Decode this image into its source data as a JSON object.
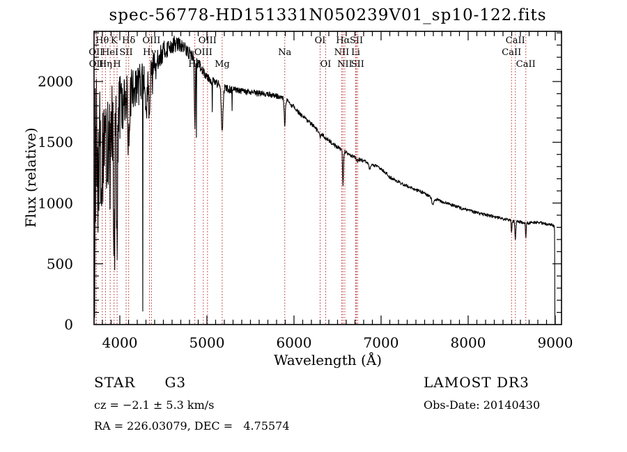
{
  "title": "spec-56778-HD151331N050239V01_sp10-122.fits",
  "footer": {
    "object_type": "STAR",
    "subclass": "G3",
    "survey": "LAMOST DR3",
    "cz_line": "cz = −2.1 ± 5.3 km/s",
    "obs_date_line": "Obs-Date: 20140430",
    "coords_line": "RA = 226.03079, DEC =   4.75574"
  },
  "chart_data": {
    "type": "line",
    "title": "spec-56778-HD151331N050239V01_sp10-122.fits",
    "xlabel": "Wavelength (Å)",
    "ylabel": "Flux (relative)",
    "xlim": [
      3704,
      9072
    ],
    "ylim": [
      0,
      2413
    ],
    "x_ticks": [
      4000,
      5000,
      6000,
      7000,
      8000,
      9000
    ],
    "y_ticks": [
      0,
      500,
      1000,
      1500,
      2000
    ],
    "x_minor_step": 100,
    "y_minor_step": 100,
    "grid": false,
    "trace_color": "#000000",
    "marker_color": "#b22222",
    "spectral_lines": [
      {
        "label": "OII",
        "wl": 3727.1,
        "row": 1
      },
      {
        "label": "OII",
        "wl": 3729.9,
        "row": 2
      },
      {
        "label": "Hθ",
        "wl": 3798.0,
        "row": 0
      },
      {
        "label": "Hη",
        "wl": 3835.4,
        "row": 2
      },
      {
        "label": "HeI",
        "wl": 3889.0,
        "row": 1
      },
      {
        "label": "K",
        "wl": 3933.7,
        "row": 0
      },
      {
        "label": "H",
        "wl": 3968.5,
        "row": 2
      },
      {
        "label": "SII",
        "wl": 4072.0,
        "row": 1
      },
      {
        "label": "Hδ",
        "wl": 4101.7,
        "row": 0
      },
      {
        "label": "Hγ",
        "wl": 4340.5,
        "row": 1
      },
      {
        "label": "OIII",
        "wl": 4363.2,
        "row": 0
      },
      {
        "label": "Hβ",
        "wl": 4861.3,
        "row": 2
      },
      {
        "label": "OIII",
        "wl": 4958.9,
        "row": 1
      },
      {
        "label": "OIII",
        "wl": 5006.8,
        "row": 0
      },
      {
        "label": "Mg",
        "wl": 5175.4,
        "row": 2
      },
      {
        "label": "Na",
        "wl": 5894.0,
        "row": 1
      },
      {
        "label": "OI",
        "wl": 6300.2,
        "row": 0
      },
      {
        "label": "OI",
        "wl": 6363.9,
        "row": 2
      },
      {
        "label": "NII",
        "wl": 6548.1,
        "row": 1
      },
      {
        "label": "Hα",
        "wl": 6562.8,
        "row": 0
      },
      {
        "label": "NII",
        "wl": 6583.5,
        "row": 2
      },
      {
        "label": "Li",
        "wl": 6708.0,
        "row": 1
      },
      {
        "label": "SII",
        "wl": 6716.4,
        "row": 0
      },
      {
        "label": "SII",
        "wl": 6730.8,
        "row": 2
      },
      {
        "label": "CaII",
        "wl": 8498.0,
        "row": 1
      },
      {
        "label": "CaII",
        "wl": 8542.1,
        "row": 0
      },
      {
        "label": "CaII",
        "wl": 8662.1,
        "row": 2
      }
    ],
    "continuum": [
      [
        3704,
        1250
      ],
      [
        3720,
        1350
      ],
      [
        3750,
        1480
      ],
      [
        3800,
        1530
      ],
      [
        3850,
        1560
      ],
      [
        3900,
        1620
      ],
      [
        3950,
        1660
      ],
      [
        4000,
        1770
      ],
      [
        4050,
        1820
      ],
      [
        4100,
        1860
      ],
      [
        4150,
        1960
      ],
      [
        4200,
        2000
      ],
      [
        4250,
        2010
      ],
      [
        4300,
        2000
      ],
      [
        4350,
        2050
      ],
      [
        4400,
        2140
      ],
      [
        4450,
        2200
      ],
      [
        4500,
        2240
      ],
      [
        4550,
        2280
      ],
      [
        4600,
        2300
      ],
      [
        4650,
        2310
      ],
      [
        4700,
        2295
      ],
      [
        4750,
        2265
      ],
      [
        4800,
        2235
      ],
      [
        4861,
        2190
      ],
      [
        4900,
        2145
      ],
      [
        4950,
        2095
      ],
      [
        5000,
        2050
      ],
      [
        5050,
        2010
      ],
      [
        5100,
        1990
      ],
      [
        5175,
        1955
      ],
      [
        5250,
        1935
      ],
      [
        5350,
        1925
      ],
      [
        5450,
        1915
      ],
      [
        5550,
        1905
      ],
      [
        5650,
        1900
      ],
      [
        5750,
        1890
      ],
      [
        5850,
        1870
      ],
      [
        5894,
        1855
      ],
      [
        5950,
        1820
      ],
      [
        6000,
        1790
      ],
      [
        6050,
        1750
      ],
      [
        6100,
        1710
      ],
      [
        6150,
        1680
      ],
      [
        6200,
        1650
      ],
      [
        6250,
        1610
      ],
      [
        6300,
        1575
      ],
      [
        6350,
        1545
      ],
      [
        6400,
        1515
      ],
      [
        6450,
        1485
      ],
      [
        6500,
        1460
      ],
      [
        6563,
        1430
      ],
      [
        6600,
        1415
      ],
      [
        6650,
        1395
      ],
      [
        6700,
        1375
      ],
      [
        6750,
        1360
      ],
      [
        6800,
        1345
      ],
      [
        6850,
        1330
      ],
      [
        6900,
        1315
      ],
      [
        6950,
        1300
      ],
      [
        7000,
        1285
      ],
      [
        7050,
        1250
      ],
      [
        7100,
        1215
      ],
      [
        7150,
        1195
      ],
      [
        7200,
        1175
      ],
      [
        7250,
        1155
      ],
      [
        7300,
        1140
      ],
      [
        7350,
        1125
      ],
      [
        7400,
        1110
      ],
      [
        7450,
        1095
      ],
      [
        7500,
        1080
      ],
      [
        7550,
        1060
      ],
      [
        7600,
        1042
      ],
      [
        7650,
        1025
      ],
      [
        7700,
        1012
      ],
      [
        7750,
        1000
      ],
      [
        7800,
        990
      ],
      [
        7850,
        975
      ],
      [
        7900,
        962
      ],
      [
        7950,
        950
      ],
      [
        8000,
        940
      ],
      [
        8050,
        930
      ],
      [
        8100,
        920
      ],
      [
        8150,
        910
      ],
      [
        8200,
        902
      ],
      [
        8250,
        895
      ],
      [
        8300,
        888
      ],
      [
        8350,
        880
      ],
      [
        8400,
        871
      ],
      [
        8450,
        862
      ],
      [
        8500,
        855
      ],
      [
        8550,
        848
      ],
      [
        8600,
        843
      ],
      [
        8650,
        839
      ],
      [
        8700,
        836
      ],
      [
        8750,
        839
      ],
      [
        8800,
        843
      ],
      [
        8850,
        836
      ],
      [
        8900,
        828
      ],
      [
        8950,
        820
      ],
      [
        8990,
        812
      ]
    ],
    "absorption": [
      {
        "wl": 3798,
        "d": 350,
        "s": 5
      },
      {
        "wl": 3835,
        "d": 400,
        "s": 5
      },
      {
        "wl": 3889,
        "d": 380,
        "s": 5
      },
      {
        "wl": 3934,
        "d": 1000,
        "s": 6
      },
      {
        "wl": 3968,
        "d": 900,
        "s": 6
      },
      {
        "wl": 4072,
        "d": 150,
        "s": 4
      },
      {
        "wl": 4102,
        "d": 430,
        "s": 6
      },
      {
        "wl": 4305,
        "d": 250,
        "s": 10
      },
      {
        "wl": 4340,
        "d": 430,
        "s": 6
      },
      {
        "wl": 4861,
        "d": 600,
        "s": 5
      },
      {
        "wl": 5175,
        "d": 360,
        "s": 9
      },
      {
        "wl": 5894,
        "d": 240,
        "s": 6
      },
      {
        "wl": 6300,
        "d": 50,
        "s": 4
      },
      {
        "wl": 6563,
        "d": 290,
        "s": 5
      },
      {
        "wl": 6716,
        "d": 35,
        "s": 3
      },
      {
        "wl": 6731,
        "d": 35,
        "s": 3
      },
      {
        "wl": 6870,
        "d": 50,
        "s": 8
      },
      {
        "wl": 7594,
        "d": 65,
        "s": 11
      },
      {
        "wl": 8498,
        "d": 100,
        "s": 4
      },
      {
        "wl": 8542,
        "d": 165,
        "s": 5
      },
      {
        "wl": 8662,
        "d": 125,
        "s": 4
      }
    ],
    "spikes": [
      {
        "wl": 3712,
        "flux": 60
      },
      {
        "wl": 3940,
        "flux": 450
      },
      {
        "wl": 4262,
        "flux": 110
      },
      {
        "wl": 4880,
        "flux": 1540
      },
      {
        "wl": 5062,
        "flux": 1750
      },
      {
        "wl": 5290,
        "flux": 1760
      }
    ],
    "red_cutoff": {
      "wl": 8996,
      "drops_to": 0
    },
    "noise": {
      "seed": 13,
      "base": 12,
      "a1": 620,
      "t1": 290,
      "a2": 85,
      "t2": 950,
      "spike_prob": 0.06,
      "spike_gain": 1.6,
      "spike_max_wl": 4450
    }
  }
}
